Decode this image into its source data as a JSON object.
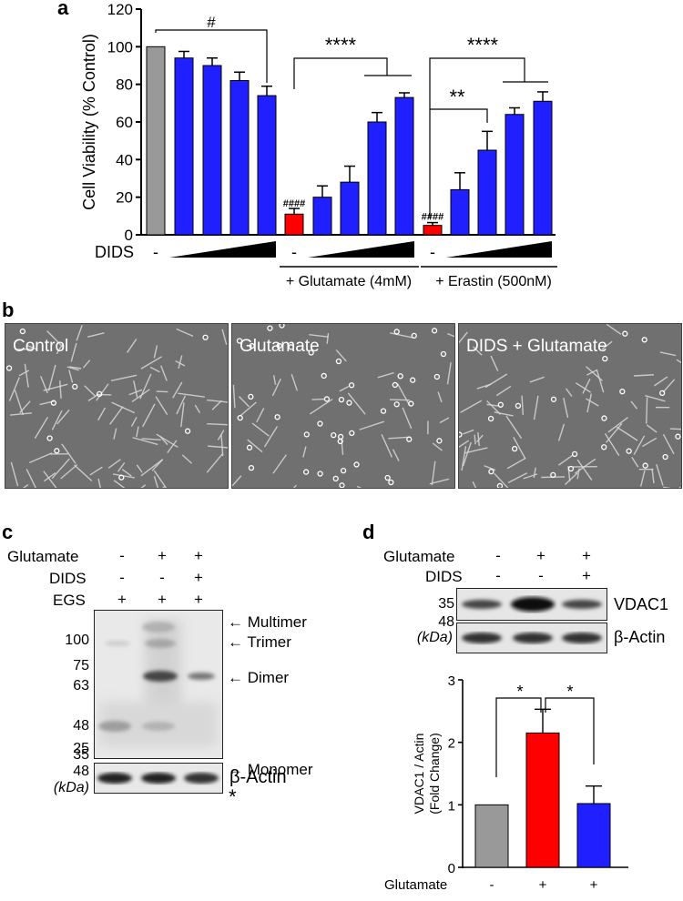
{
  "panel_labels": {
    "a": "a",
    "b": "b",
    "c": "c",
    "d": "d"
  },
  "chart_data": [
    {
      "type": "bar",
      "panel": "a",
      "ylabel": "Cell Viability (% Control)",
      "ylim": [
        0,
        120
      ],
      "yticks": [
        0,
        20,
        40,
        60,
        80,
        100,
        120
      ],
      "bars": [
        {
          "value": 100,
          "error": 0,
          "color": "#999999"
        },
        {
          "value": 94,
          "error": 3.5,
          "color": "#1f1fff"
        },
        {
          "value": 90,
          "error": 4,
          "color": "#1f1fff"
        },
        {
          "value": 82,
          "error": 4.5,
          "color": "#1f1fff"
        },
        {
          "value": 74,
          "error": 5,
          "color": "#1f1fff"
        },
        {
          "value": 11,
          "error": 3,
          "color": "#ff0000"
        },
        {
          "value": 20,
          "error": 6,
          "color": "#1f1fff"
        },
        {
          "value": 28,
          "error": 8.5,
          "color": "#1f1fff"
        },
        {
          "value": 60,
          "error": 5,
          "color": "#1f1fff"
        },
        {
          "value": 73,
          "error": 2.5,
          "color": "#1f1fff"
        },
        {
          "value": 5,
          "error": 1.5,
          "color": "#ff0000"
        },
        {
          "value": 24,
          "error": 9,
          "color": "#1f1fff"
        },
        {
          "value": 45,
          "error": 10,
          "color": "#1f1fff"
        },
        {
          "value": 64,
          "error": 3.5,
          "color": "#1f1fff"
        },
        {
          "value": 71,
          "error": 5,
          "color": "#1f1fff"
        }
      ],
      "bar_labels": [
        "####",
        "####"
      ],
      "significance": [
        "#",
        "****",
        "****",
        "**"
      ],
      "dids_label": "DIDS",
      "minus": "-",
      "group_labels": [
        "+ Glutamate (4mM)",
        "+ Erastin (500nM)"
      ]
    },
    {
      "type": "bar",
      "panel": "d",
      "ylabel": "VDAC1 / Actin",
      "ylabel2": "(Fold Change)",
      "ylim": [
        0,
        3
      ],
      "yticks": [
        0,
        1,
        2,
        3
      ],
      "bars": [
        {
          "value": 1.0,
          "error": 0,
          "color": "#999999"
        },
        {
          "value": 2.15,
          "error": 0.38,
          "color": "#ff0000"
        },
        {
          "value": 1.02,
          "error": 0.28,
          "color": "#1f1fff"
        }
      ],
      "significance": [
        "*",
        "*"
      ],
      "rows": [
        {
          "label": "Glutamate",
          "signs": [
            "-",
            "+",
            "+"
          ]
        },
        {
          "label": "DIDS",
          "signs": [
            "-",
            "-",
            "+"
          ]
        }
      ]
    }
  ],
  "panel_b": {
    "captions": [
      "Control",
      "Glutamate",
      "DIDS + Glutamate"
    ]
  },
  "panel_c": {
    "rows": [
      {
        "label": "Glutamate",
        "signs": [
          "-",
          "+",
          "+"
        ]
      },
      {
        "label": "DIDS",
        "signs": [
          "-",
          "-",
          "+"
        ]
      },
      {
        "label": "EGS",
        "signs": [
          "+",
          "+",
          "+"
        ]
      }
    ],
    "mw_markers": [
      "100",
      "75",
      "63",
      "48",
      "35",
      "25"
    ],
    "actin_mw": "48",
    "kda": "(kDa)",
    "arrows": [
      "Multimer",
      "Trimer",
      "Dimer",
      "Monomer"
    ],
    "asterisk": "*",
    "actin_label": "β-Actin"
  },
  "panel_d": {
    "rows": [
      {
        "label": "Glutamate",
        "signs": [
          "-",
          "+",
          "+"
        ]
      },
      {
        "label": "DIDS",
        "signs": [
          "-",
          "-",
          "+"
        ]
      }
    ],
    "mw_markers": [
      "35",
      "48"
    ],
    "kda": "(kDa)",
    "blot_labels": [
      "VDAC1",
      "β-Actin"
    ]
  }
}
